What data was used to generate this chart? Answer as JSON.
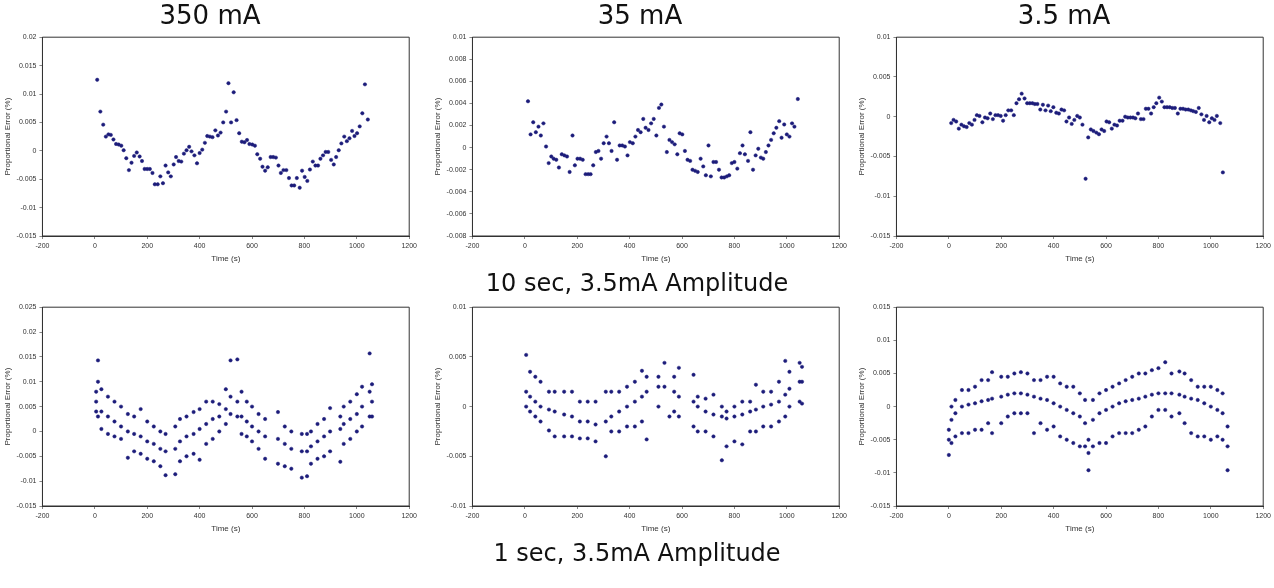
{
  "chart_data": [
    {
      "type": "scatter",
      "title": "350 mA",
      "xlabel": "Time (s)",
      "ylabel": "Proportional Error (%)",
      "marker": "circle",
      "xlim": [
        -200,
        1200
      ],
      "xticks": [
        -200,
        0,
        200,
        400,
        600,
        800,
        1000,
        1200
      ],
      "ylim": [
        -0.015,
        0.02
      ],
      "yticks": [
        -0.015,
        -0.01,
        -0.005,
        0.0,
        0.005,
        0.01,
        0.015,
        0.02
      ],
      "series": [
        {
          "color": "#1c1c7a",
          "x": [
            9,
            21,
            32,
            42,
            52,
            61,
            71,
            81,
            91,
            101,
            110,
            120,
            130,
            140,
            150,
            160,
            171,
            180,
            190,
            200,
            210,
            220,
            229,
            240,
            250,
            260,
            270,
            280,
            290,
            301,
            310,
            320,
            330,
            340,
            350,
            360,
            369,
            380,
            390,
            400,
            410,
            420,
            429,
            439,
            449,
            460,
            470,
            480,
            490,
            501,
            510,
            520,
            530,
            541,
            551,
            561,
            571,
            581,
            590,
            601,
            611,
            620,
            631,
            640,
            650,
            660,
            671,
            681,
            691,
            701,
            710,
            720,
            731,
            741,
            751,
            761,
            771,
            782,
            791,
            801,
            811,
            821,
            832,
            842,
            852,
            861,
            871,
            881,
            891,
            902,
            912,
            921,
            931,
            941,
            952,
            962,
            972,
            982,
            991,
            1001,
            1011,
            1021,
            1031,
            1042
          ],
          "values": [
            0.0125,
            0.0069,
            0.0046,
            0.0025,
            0.0029,
            0.0028,
            0.002,
            0.0012,
            0.0011,
            0.0009,
            0.0001,
            -0.0013,
            -0.0034,
            -0.0021,
            -0.0009,
            -0.0003,
            -0.001,
            -0.0018,
            -0.0032,
            -0.0032,
            -0.0032,
            -0.0039,
            -0.0059,
            -0.0059,
            -0.0045,
            -0.0057,
            -0.0026,
            -0.0038,
            -0.0045,
            -0.0024,
            -0.0011,
            -0.0018,
            -0.0019,
            -0.0005,
            0.0001,
            0.0007,
            -0.0001,
            -0.0008,
            -0.0022,
            -0.0004,
            0.0002,
            0.0014,
            0.0026,
            0.0025,
            0.0024,
            0.0036,
            0.0027,
            0.0032,
            0.005,
            0.0069,
            0.0119,
            0.005,
            0.0103,
            0.0054,
            0.0031,
            0.0016,
            0.0015,
            0.0019,
            0.0012,
            0.0011,
            0.0009,
            -0.0006,
            -0.0014,
            -0.0028,
            -0.0035,
            -0.0029,
            -0.0011,
            -0.0011,
            -0.0012,
            -0.0026,
            -0.0039,
            -0.0034,
            -0.0034,
            -0.0048,
            -0.0061,
            -0.0061,
            -0.0048,
            -0.0065,
            -0.0035,
            -0.0046,
            -0.0053,
            -0.0033,
            -0.0019,
            -0.0026,
            -0.0026,
            -0.0014,
            -0.0008,
            -0.0002,
            -0.0002,
            -0.0016,
            -0.0024,
            -0.0011,
            0.0001,
            0.0013,
            0.0025,
            0.0017,
            0.0022,
            0.0035,
            0.0026,
            0.0031,
            0.0043,
            0.0066,
            0.0117,
            0.0055
          ]
        }
      ]
    },
    {
      "type": "scatter",
      "title": "35 mA",
      "xlabel": "Time (s)",
      "ylabel": "Proportional Error (%)",
      "marker": "circle",
      "annotations": [
        "10 sec, 3.5mA Amplitude"
      ],
      "xlim": [
        -200,
        1200
      ],
      "xticks": [
        -200,
        0,
        200,
        400,
        600,
        800,
        1000,
        1200
      ],
      "ylim": [
        -0.008,
        0.01
      ],
      "yticks": [
        -0.008,
        -0.006,
        -0.004,
        -0.002,
        0.0,
        0.002,
        0.004,
        0.006,
        0.008,
        0.01
      ],
      "series": [
        {
          "color": "#1c1c7a",
          "x": [
            12,
            22,
            32,
            42,
            52,
            61,
            71,
            81,
            91,
            101,
            110,
            120,
            130,
            141,
            151,
            161,
            171,
            182,
            191,
            201,
            211,
            221,
            232,
            242,
            251,
            261,
            271,
            281,
            291,
            301,
            312,
            321,
            331,
            341,
            352,
            362,
            372,
            382,
            392,
            401,
            412,
            422,
            432,
            442,
            452,
            461,
            472,
            482,
            492,
            502,
            512,
            521,
            531,
            542,
            552,
            562,
            572,
            582,
            591,
            601,
            611,
            621,
            631,
            640,
            650,
            660,
            671,
            681,
            691,
            701,
            710,
            720,
            730,
            741,
            751,
            761,
            771,
            780,
            790,
            800,
            811,
            821,
            831,
            840,
            852,
            861,
            871,
            881,
            891,
            901,
            910,
            920,
            930,
            940,
            950,
            960,
            971,
            980,
            990,
            1000,
            1010,
            1020,
            1029,
            1042
          ],
          "values": [
            0.0042,
            0.0012,
            0.0023,
            0.0014,
            0.0019,
            0.0011,
            0.0022,
            0.0001,
            -0.0014,
            -0.0008,
            -0.001,
            -0.0011,
            -0.0018,
            -0.0006,
            -0.0007,
            -0.0008,
            -0.0022,
            0.0011,
            -0.0016,
            -0.001,
            -0.001,
            -0.0011,
            -0.0024,
            -0.0024,
            -0.0024,
            -0.0016,
            -0.0004,
            -0.0003,
            -0.001,
            0.0004,
            0.001,
            0.0004,
            -0.0003,
            0.0023,
            -0.0011,
            0.0002,
            0.0002,
            0.0001,
            -0.0007,
            0.0005,
            0.0004,
            0.001,
            0.0016,
            0.0014,
            0.0026,
            0.0018,
            0.0016,
            0.0022,
            0.0026,
            0.0011,
            0.0036,
            0.0039,
            0.0019,
            -0.0004,
            0.0007,
            0.0005,
            0.0003,
            -0.0006,
            0.0013,
            0.0012,
            -0.0003,
            -0.0011,
            -0.0012,
            -0.002,
            -0.0021,
            -0.0022,
            -0.001,
            -0.0017,
            -0.0025,
            0.0002,
            -0.0026,
            -0.0013,
            -0.0013,
            -0.002,
            -0.0027,
            -0.0027,
            -0.0026,
            -0.0025,
            -0.0014,
            -0.0013,
            -0.0019,
            -0.0005,
            0.0002,
            -0.0006,
            -0.0012,
            0.0014,
            -0.002,
            -0.0007,
            -0.0001,
            -0.0009,
            -0.001,
            -0.0004,
            0.0002,
            0.0007,
            0.0013,
            0.0018,
            0.0024,
            0.0009,
            0.0021,
            0.0012,
            0.001,
            0.0022,
            0.0019,
            0.0044
          ]
        }
      ]
    },
    {
      "type": "scatter",
      "title": "3.5 mA",
      "xlabel": "Time (s)",
      "ylabel": "Proportional Error (%)",
      "marker": "circle",
      "xlim": [
        -200,
        1200
      ],
      "xticks": [
        -200,
        0,
        200,
        400,
        600,
        800,
        1000,
        1200
      ],
      "ylim": [
        -0.015,
        0.01
      ],
      "yticks": [
        -0.015,
        -0.01,
        -0.005,
        0.0,
        0.005,
        0.01
      ],
      "series": [
        {
          "color": "#1c1c7a",
          "x": [
            9,
            18,
            28,
            38,
            48,
            58,
            68,
            78,
            88,
            98,
            107,
            117,
            128,
            138,
            148,
            158,
            168,
            178,
            188,
            198,
            207,
            217,
            227,
            238,
            248,
            258,
            268,
            278,
            289,
            299,
            309,
            319,
            328,
            338,
            349,
            359,
            369,
            379,
            389,
            399,
            410,
            420,
            430,
            440,
            449,
            459,
            469,
            479,
            490,
            500,
            510,
            522,
            532,
            542,
            552,
            563,
            573,
            583,
            593,
            602,
            612,
            622,
            632,
            642,
            652,
            663,
            673,
            683,
            693,
            703,
            712,
            722,
            733,
            743,
            752,
            762,
            772,
            782,
            792,
            803,
            813,
            823,
            833,
            843,
            853,
            863,
            874,
            884,
            894,
            904,
            914,
            924,
            933,
            943,
            954,
            964,
            974,
            984,
            994,
            1004,
            1014,
            1023,
            1036,
            1046
          ],
          "values": [
            -0.0008,
            -0.0004,
            -0.0006,
            -0.0015,
            -0.001,
            -0.0012,
            -0.0013,
            -0.0008,
            -0.001,
            -0.0004,
            0.0002,
            0.0001,
            -0.0007,
            -0.0001,
            -0.0002,
            0.0004,
            -0.0003,
            0.0002,
            0.0002,
            0.0001,
            -0.0005,
            0.0002,
            0.0008,
            0.0008,
            0.0002,
            0.0017,
            0.0022,
            0.0029,
            0.0023,
            0.0017,
            0.0017,
            0.0017,
            0.0016,
            0.0016,
            0.0009,
            0.0015,
            0.0008,
            0.0014,
            0.0007,
            0.0012,
            0.0005,
            0.0004,
            0.0009,
            0.0008,
            -0.0006,
            -0.0001,
            -0.0009,
            -0.0004,
            0.0001,
            -0.0001,
            -0.001,
            -0.0078,
            -0.0026,
            -0.0016,
            -0.0018,
            -0.002,
            -0.0022,
            -0.0016,
            -0.0018,
            -0.0006,
            -0.0007,
            -0.0015,
            -0.001,
            -0.0011,
            -0.0005,
            -0.0005,
            0.0,
            -0.0001,
            -0.0001,
            -0.0001,
            -0.0002,
            0.0004,
            -0.0003,
            -0.0003,
            0.001,
            0.001,
            0.0004,
            0.0012,
            0.0017,
            0.0024,
            0.0019,
            0.0012,
            0.0012,
            0.0012,
            0.0011,
            0.0011,
            0.0004,
            0.001,
            0.001,
            0.0009,
            0.0009,
            0.0008,
            0.0007,
            0.0006,
            0.0011,
            0.0003,
            -0.0004,
            0.0001,
            -0.0007,
            -0.0002,
            -0.0004,
            0.0001,
            -0.0008,
            -0.007
          ]
        }
      ]
    },
    {
      "type": "scatter",
      "xlabel": "Time (s)",
      "ylabel": "Proportional Error (%)",
      "marker": "circle",
      "xlim": [
        -200,
        1200
      ],
      "xticks": [
        -200,
        0,
        200,
        400,
        600,
        800,
        1000,
        1200
      ],
      "ylim": [
        -0.015,
        0.025
      ],
      "yticks": [
        -0.015,
        -0.01,
        -0.005,
        0.0,
        0.005,
        0.01,
        0.015,
        0.02,
        0.025
      ],
      "series": [
        {
          "color": "#1c1c7a",
          "x": [
            5,
            5,
            5,
            12,
            12,
            12,
            25,
            25,
            25,
            50,
            50,
            50,
            75,
            75,
            75,
            100,
            100,
            100,
            126,
            126,
            126,
            150,
            150,
            150,
            175,
            175,
            175,
            200,
            200,
            200,
            225,
            225,
            225,
            250,
            250,
            250,
            270,
            270,
            270,
            307,
            307,
            307,
            325,
            325,
            325,
            350,
            350,
            350,
            377,
            377,
            377,
            400,
            400,
            400,
            425,
            425,
            425,
            450,
            450,
            450,
            475,
            475,
            475,
            500,
            500,
            500,
            518,
            518,
            518,
            544,
            544,
            544,
            560,
            560,
            560,
            580,
            580,
            580,
            600,
            600,
            600,
            625,
            625,
            625,
            650,
            650,
            650,
            699,
            699,
            699,
            725,
            725,
            725,
            750,
            750,
            750,
            790,
            790,
            790,
            810,
            810,
            810,
            825,
            825,
            825,
            850,
            850,
            850,
            875,
            875,
            875,
            898,
            898,
            898,
            937,
            937,
            937,
            950,
            950,
            950,
            975,
            975,
            975,
            1000,
            1000,
            1000,
            1020,
            1020,
            1020,
            1049,
            1049,
            1049,
            1058,
            1058,
            1058
          ],
          "values": [
            0.008,
            0.006,
            0.004,
            0.0143,
            0.01,
            0.003,
            0.0085,
            0.004,
            0.0005,
            0.007,
            0.003,
            -0.0005,
            0.006,
            0.002,
            -0.001,
            0.005,
            0.001,
            -0.0015,
            0.0035,
            0.0,
            -0.0053,
            0.003,
            -0.0005,
            -0.004,
            0.0045,
            -0.001,
            -0.0045,
            0.002,
            -0.002,
            -0.0055,
            0.001,
            -0.0025,
            -0.006,
            0.0,
            -0.0035,
            -0.007,
            -0.0005,
            -0.004,
            -0.0088,
            0.001,
            -0.0035,
            -0.0086,
            0.0025,
            -0.002,
            -0.006,
            0.003,
            -0.001,
            -0.005,
            0.0039,
            -0.0005,
            -0.0045,
            0.0045,
            0.0005,
            -0.0057,
            0.006,
            0.0015,
            -0.0025,
            0.006,
            0.0025,
            -0.0015,
            0.0055,
            0.003,
            0.0,
            0.0085,
            0.0045,
            0.0015,
            0.0143,
            0.007,
            0.0035,
            0.0145,
            0.006,
            0.003,
            0.008,
            0.003,
            -0.0005,
            0.006,
            0.002,
            -0.001,
            0.005,
            0.001,
            -0.002,
            0.0035,
            0.0,
            -0.0035,
            0.0025,
            -0.001,
            -0.0055,
            0.0039,
            -0.0015,
            -0.0065,
            0.001,
            -0.0025,
            -0.007,
            0.0,
            -0.0035,
            -0.0075,
            -0.0005,
            -0.004,
            -0.0093,
            -0.0005,
            -0.004,
            -0.009,
            0.0,
            -0.003,
            -0.0065,
            0.0015,
            -0.002,
            -0.0055,
            0.0025,
            -0.001,
            -0.005,
            0.0047,
            0.0,
            -0.004,
            0.003,
            0.0005,
            -0.0061,
            0.005,
            0.0015,
            -0.0025,
            0.006,
            0.0025,
            -0.0015,
            0.0075,
            0.0035,
            0.0,
            0.009,
            0.005,
            0.001,
            0.0157,
            0.008,
            0.003,
            0.0095,
            0.006,
            0.003
          ]
        }
      ]
    },
    {
      "type": "scatter",
      "xlabel": "Time (s)",
      "ylabel": "Proportional Error (%)",
      "marker": "circle",
      "annotations": [
        "1 sec, 3.5mA Amplitude"
      ],
      "xlim": [
        -200,
        1200
      ],
      "xticks": [
        -200,
        0,
        200,
        400,
        600,
        800,
        1000,
        1200
      ],
      "ylim": [
        -0.01,
        0.01
      ],
      "yticks": [
        -0.01,
        -0.005,
        0.0,
        0.005,
        0.01
      ],
      "series": [
        {
          "color": "#1c1c7a",
          "x": [
            5,
            5,
            5,
            20,
            20,
            20,
            40,
            40,
            40,
            60,
            60,
            60,
            92,
            92,
            92,
            114,
            114,
            114,
            150,
            150,
            150,
            180,
            180,
            180,
            210,
            210,
            210,
            240,
            240,
            240,
            270,
            270,
            270,
            309,
            309,
            309,
            330,
            330,
            330,
            360,
            360,
            360,
            390,
            390,
            390,
            420,
            420,
            420,
            447,
            447,
            447,
            465,
            465,
            465,
            510,
            510,
            510,
            533,
            533,
            552,
            570,
            570,
            570,
            588,
            588,
            588,
            644,
            644,
            644,
            660,
            660,
            660,
            690,
            690,
            690,
            720,
            720,
            720,
            752,
            752,
            752,
            770,
            770,
            770,
            800,
            800,
            800,
            830,
            830,
            830,
            860,
            860,
            860,
            882,
            882,
            882,
            910,
            910,
            910,
            940,
            940,
            940,
            970,
            970,
            970,
            994,
            994,
            994,
            1010,
            1010,
            1010,
            1049,
            1049,
            1049,
            1058,
            1058,
            1058
          ],
          "values": [
            0.0052,
            0.0015,
            0.0,
            0.0035,
            0.001,
            -0.0005,
            0.003,
            0.0005,
            -0.001,
            0.0025,
            0.0,
            -0.0015,
            0.0015,
            -0.0003,
            -0.0024,
            0.0015,
            -0.0005,
            -0.003,
            0.0015,
            -0.0008,
            -0.003,
            0.0015,
            -0.001,
            -0.003,
            0.0005,
            -0.0015,
            -0.0032,
            0.0005,
            -0.0015,
            -0.0032,
            0.0005,
            -0.0018,
            -0.0035,
            0.0015,
            -0.0015,
            -0.005,
            0.0015,
            -0.001,
            -0.0025,
            0.0015,
            -0.0005,
            -0.0025,
            0.002,
            0.0,
            -0.002,
            0.0025,
            0.0005,
            -0.002,
            0.0036,
            0.001,
            -0.0015,
            0.003,
            0.0015,
            -0.0033,
            0.003,
            0.002,
            0.0,
            0.0044,
            0.002,
            -0.001,
            0.003,
            0.0015,
            -0.0005,
            0.0039,
            0.001,
            -0.001,
            0.0032,
            0.0005,
            -0.002,
            0.001,
            0.0,
            -0.0025,
            0.0008,
            -0.0005,
            -0.0025,
            0.0012,
            -0.0008,
            -0.003,
            0.0,
            -0.001,
            -0.0054,
            -0.0005,
            -0.0012,
            -0.004,
            0.0,
            -0.001,
            -0.0035,
            0.0005,
            -0.0008,
            -0.0038,
            0.0005,
            -0.0005,
            -0.0025,
            0.0022,
            -0.0003,
            -0.0025,
            0.0015,
            0.0,
            -0.002,
            0.0015,
            0.0002,
            -0.002,
            0.0025,
            0.0005,
            -0.0015,
            0.0046,
            0.0012,
            -0.001,
            0.0035,
            0.0018,
            0.0,
            0.0044,
            0.0025,
            0.0005,
            0.004,
            0.0025,
            0.0003
          ]
        }
      ]
    },
    {
      "type": "scatter",
      "xlabel": "Time (s)",
      "ylabel": "Proportional Error (%)",
      "marker": "circle",
      "xlim": [
        -200,
        1200
      ],
      "xticks": [
        -200,
        0,
        200,
        400,
        600,
        800,
        1000,
        1200
      ],
      "ylim": [
        -0.015,
        0.015
      ],
      "yticks": [
        -0.015,
        -0.01,
        -0.005,
        0.0,
        0.005,
        0.01,
        0.015
      ],
      "series": [
        {
          "color": "#1c1c7a",
          "x": [
            0,
            0,
            0,
            10,
            10,
            10,
            25,
            25,
            25,
            50,
            50,
            50,
            75,
            75,
            75,
            100,
            100,
            100,
            125,
            125,
            125,
            150,
            150,
            150,
            165,
            165,
            165,
            200,
            200,
            200,
            225,
            225,
            225,
            250,
            250,
            250,
            275,
            275,
            275,
            300,
            300,
            300,
            325,
            325,
            325,
            350,
            350,
            350,
            375,
            375,
            375,
            400,
            400,
            400,
            425,
            425,
            425,
            450,
            450,
            450,
            475,
            475,
            475,
            500,
            500,
            500,
            520,
            520,
            520,
            533,
            533,
            533,
            550,
            550,
            550,
            575,
            575,
            575,
            600,
            600,
            600,
            625,
            625,
            625,
            650,
            650,
            650,
            675,
            675,
            675,
            700,
            700,
            700,
            725,
            725,
            725,
            750,
            750,
            750,
            775,
            775,
            775,
            800,
            800,
            800,
            826,
            826,
            826,
            850,
            850,
            850,
            880,
            880,
            880,
            900,
            900,
            900,
            925,
            925,
            925,
            950,
            950,
            950,
            975,
            975,
            975,
            1000,
            1000,
            1000,
            1025,
            1025,
            1025,
            1045,
            1045,
            1045,
            1064,
            1064,
            1064
          ],
          "values": [
            -0.0035,
            -0.005,
            -0.0073,
            0.0,
            -0.002,
            -0.0055,
            0.001,
            -0.001,
            -0.0045,
            0.0025,
            0.0,
            -0.004,
            0.0025,
            0.0003,
            -0.004,
            0.003,
            0.0005,
            -0.0035,
            0.004,
            0.0008,
            -0.0035,
            0.004,
            0.001,
            -0.0025,
            0.0052,
            0.0012,
            -0.004,
            0.0045,
            0.0015,
            -0.0025,
            0.0045,
            0.0018,
            -0.0015,
            0.005,
            0.002,
            -0.001,
            0.0052,
            0.002,
            -0.001,
            0.005,
            0.0018,
            -0.001,
            0.004,
            0.0015,
            -0.004,
            0.004,
            0.0012,
            -0.0025,
            0.0045,
            0.001,
            -0.0035,
            0.0045,
            0.0005,
            -0.003,
            0.0035,
            0.0,
            -0.0045,
            0.003,
            -0.0005,
            -0.005,
            0.003,
            -0.001,
            -0.0055,
            0.002,
            -0.0015,
            -0.006,
            0.001,
            -0.0025,
            -0.006,
            -0.005,
            -0.007,
            -0.0096,
            0.001,
            -0.002,
            -0.006,
            0.002,
            -0.001,
            -0.0055,
            0.0025,
            -0.0005,
            -0.0055,
            0.003,
            0.0,
            -0.0045,
            0.0035,
            0.0005,
            -0.004,
            0.004,
            0.0008,
            -0.004,
            0.0045,
            0.001,
            -0.004,
            0.005,
            0.0012,
            -0.0035,
            0.005,
            0.0015,
            -0.003,
            0.0055,
            0.0018,
            -0.0015,
            0.0058,
            0.002,
            -0.0005,
            0.0067,
            0.002,
            -0.0005,
            0.005,
            0.002,
            -0.0015,
            0.0053,
            0.0018,
            -0.001,
            0.005,
            0.0015,
            -0.0025,
            0.004,
            0.0012,
            -0.004,
            0.003,
            0.001,
            -0.0045,
            0.003,
            0.0005,
            -0.0045,
            0.003,
            0.0,
            -0.005,
            0.0025,
            -0.0005,
            -0.0045,
            0.002,
            -0.001,
            -0.005,
            -0.003,
            -0.006,
            -0.0096
          ]
        }
      ]
    }
  ]
}
